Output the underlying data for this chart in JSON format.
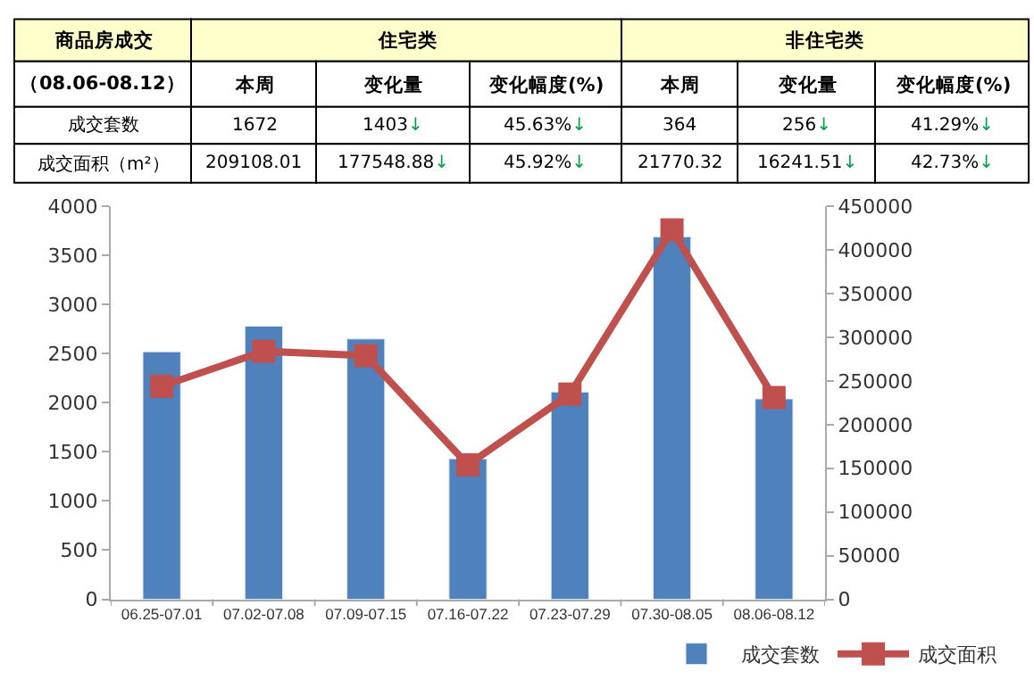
{
  "chart_data": [
    {
      "type": "other",
      "annotations": [
        "商品房成交",
        "住宅类",
        "非住宅类",
        "（08.06-08.12）",
        "本周",
        "变化量",
        "变化幅度(%)",
        "本周",
        "变化量",
        "变化幅度(%)",
        "成交套数",
        "1672",
        "1403↓",
        "45.63%↓",
        "364",
        "256↓",
        "41.29%↓",
        "成交面积（m²）",
        "209108.01",
        "177548.88↓",
        "45.92%↓",
        "21770.32",
        "16241.51↓",
        "42.73%↓"
      ]
    },
    {
      "type": "bar",
      "categories": [
        "06.25-07.01",
        "07.02-07.08",
        "07.09-07.15",
        "07.16-07.22",
        "07.23-07.29",
        "07.30-08.05",
        "08.06-08.12"
      ],
      "series": [
        {
          "name": "成交套数",
          "type": "bar",
          "color": "#4f81bd",
          "values": [
            2520,
            2780,
            2650,
            1430,
            2110,
            3690,
            2040
          ]
        },
        {
          "name": "成交面积",
          "type": "line",
          "axis": "y2",
          "color": "#c0504d",
          "marker": "square",
          "values": [
            244000,
            284000,
            279000,
            154000,
            235000,
            423000,
            231000
          ]
        }
      ],
      "ylim": [
        0,
        4000
      ],
      "yticks": [
        0,
        500,
        1000,
        1500,
        2000,
        2500,
        3000,
        3500,
        4000
      ],
      "y2lim": [
        0,
        450000
      ],
      "y2ticks": [
        0,
        50000,
        100000,
        150000,
        200000,
        250000,
        300000,
        350000,
        400000,
        450000
      ],
      "legend": "bottom right"
    }
  ]
}
